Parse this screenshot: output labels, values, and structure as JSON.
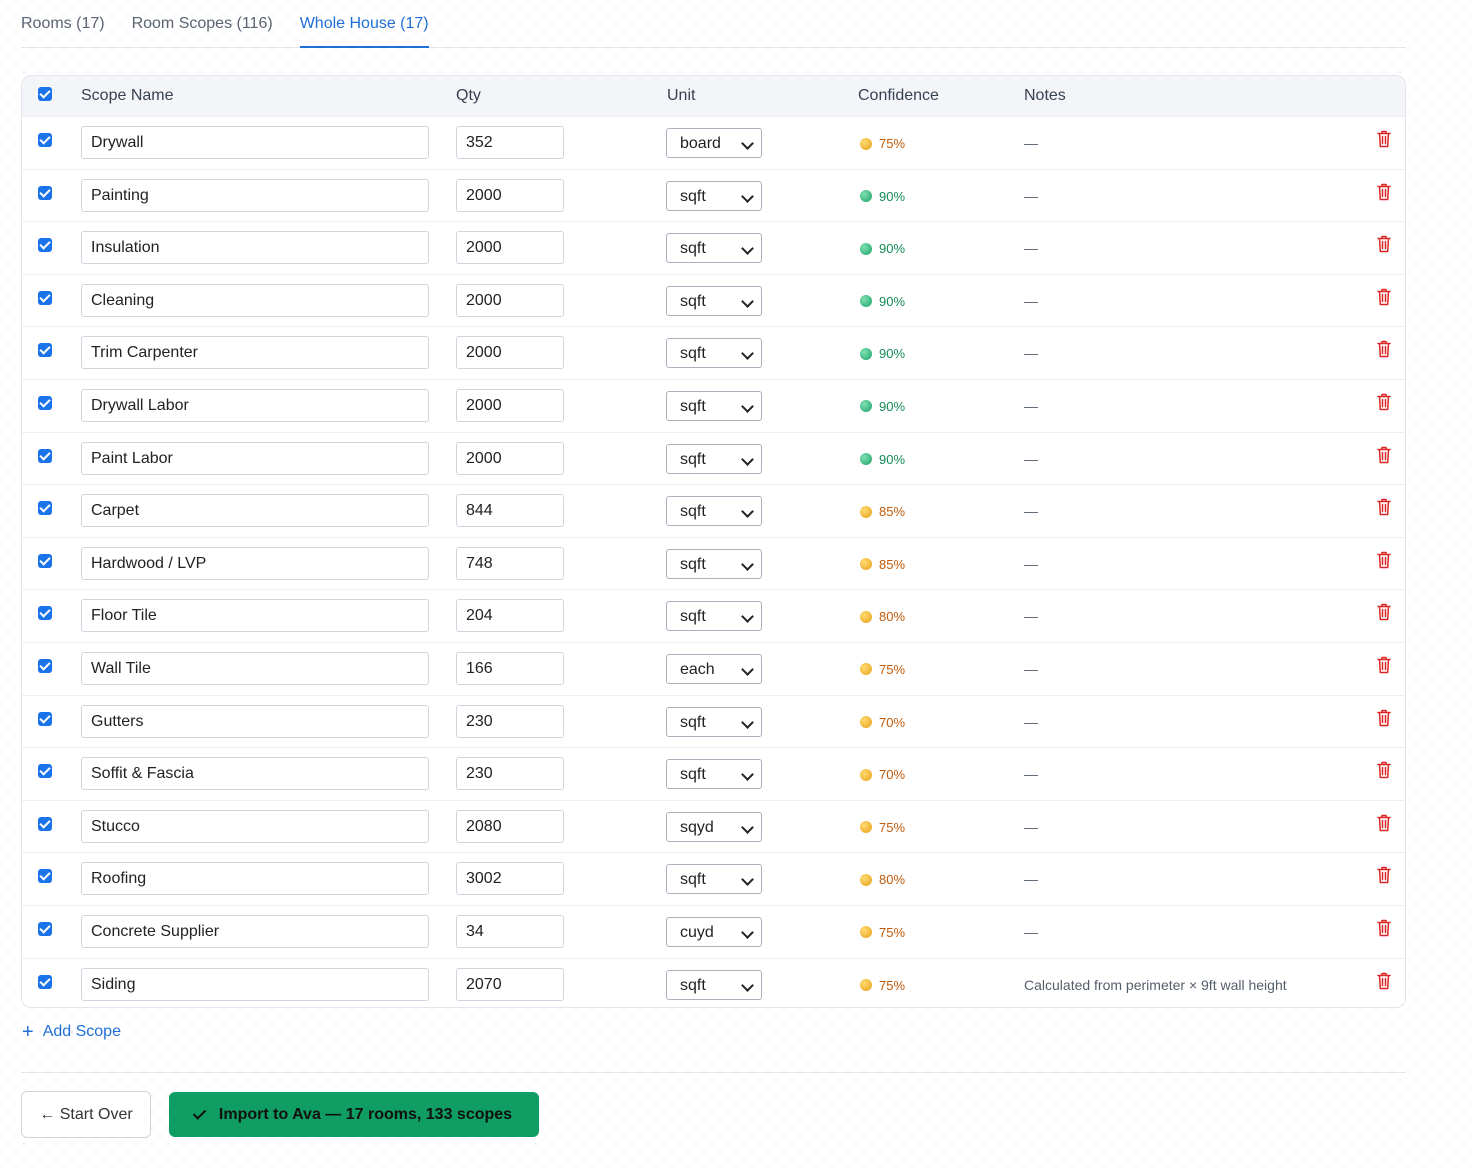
{
  "tabs": [
    {
      "label": "Rooms (17)",
      "active": false
    },
    {
      "label": "Room Scopes (116)",
      "active": false
    },
    {
      "label": "Whole House (17)",
      "active": true
    }
  ],
  "table": {
    "headers": {
      "name": "Scope Name",
      "qty": "Qty",
      "unit": "Unit",
      "confidence": "Confidence",
      "notes": "Notes"
    },
    "rows": [
      {
        "name": "Drywall",
        "qty": "352",
        "unit": "board",
        "confidence": "75%",
        "level": "mid",
        "notes": "—"
      },
      {
        "name": "Painting",
        "qty": "2000",
        "unit": "sqft",
        "confidence": "90%",
        "level": "high",
        "notes": "—"
      },
      {
        "name": "Insulation",
        "qty": "2000",
        "unit": "sqft",
        "confidence": "90%",
        "level": "high",
        "notes": "—"
      },
      {
        "name": "Cleaning",
        "qty": "2000",
        "unit": "sqft",
        "confidence": "90%",
        "level": "high",
        "notes": "—"
      },
      {
        "name": "Trim Carpenter",
        "qty": "2000",
        "unit": "sqft",
        "confidence": "90%",
        "level": "high",
        "notes": "—"
      },
      {
        "name": "Drywall Labor",
        "qty": "2000",
        "unit": "sqft",
        "confidence": "90%",
        "level": "high",
        "notes": "—"
      },
      {
        "name": "Paint Labor",
        "qty": "2000",
        "unit": "sqft",
        "confidence": "90%",
        "level": "high",
        "notes": "—"
      },
      {
        "name": "Carpet",
        "qty": "844",
        "unit": "sqft",
        "confidence": "85%",
        "level": "mid",
        "notes": "—"
      },
      {
        "name": "Hardwood / LVP",
        "qty": "748",
        "unit": "sqft",
        "confidence": "85%",
        "level": "mid",
        "notes": "—"
      },
      {
        "name": "Floor Tile",
        "qty": "204",
        "unit": "sqft",
        "confidence": "80%",
        "level": "mid",
        "notes": "—"
      },
      {
        "name": "Wall Tile",
        "qty": "166",
        "unit": "each",
        "confidence": "75%",
        "level": "mid",
        "notes": "—"
      },
      {
        "name": "Gutters",
        "qty": "230",
        "unit": "sqft",
        "confidence": "70%",
        "level": "mid",
        "notes": "—"
      },
      {
        "name": "Soffit & Fascia",
        "qty": "230",
        "unit": "sqft",
        "confidence": "70%",
        "level": "mid",
        "notes": "—"
      },
      {
        "name": "Stucco",
        "qty": "2080",
        "unit": "sqyd",
        "confidence": "75%",
        "level": "mid",
        "notes": "—"
      },
      {
        "name": "Roofing",
        "qty": "3002",
        "unit": "sqft",
        "confidence": "80%",
        "level": "mid",
        "notes": "—"
      },
      {
        "name": "Concrete Supplier",
        "qty": "34",
        "unit": "cuyd",
        "confidence": "75%",
        "level": "mid",
        "notes": "—"
      },
      {
        "name": "Siding",
        "qty": "2070",
        "unit": "sqft",
        "confidence": "75%",
        "level": "mid",
        "notes": "Calculated from perimeter × 9ft wall height"
      }
    ]
  },
  "add_scope_label": "Add Scope",
  "footer": {
    "start_over_label": "← Start Over",
    "import_label": "Import to Ava — 17 rooms, 133 scopes"
  },
  "colors": {
    "accent": "#1f6fd6",
    "checkbox": "#1a73e8",
    "import_button": "#0f9d63",
    "delete": "#dc2626"
  },
  "icons": {
    "delete": "trash-icon",
    "add": "plus-icon",
    "import": "check-icon",
    "unit": "chevron-down-icon"
  }
}
